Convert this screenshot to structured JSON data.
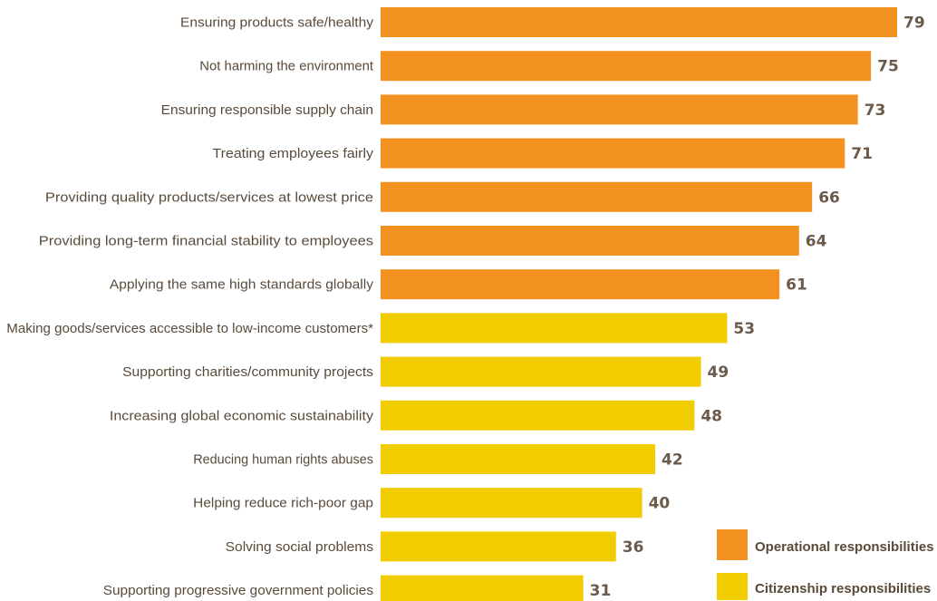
{
  "chart_data": {
    "type": "bar",
    "orientation": "horizontal",
    "categories": [
      "Ensuring products safe/healthy",
      "Not harming the environment",
      "Ensuring responsible supply chain",
      "Treating employees fairly",
      "Providing quality products/services at lowest price",
      "Providing long-term financial stability to employees",
      "Applying the same high standards globally",
      "Making goods/services accessible to low-income customers*",
      "Supporting charities/community projects",
      "Increasing global economic sustainability",
      "Reducing human rights abuses",
      "Helping reduce rich-poor gap",
      "Solving social problems",
      "Supporting progressive government policies"
    ],
    "values": [
      79,
      75,
      73,
      71,
      66,
      64,
      61,
      53,
      49,
      48,
      42,
      40,
      36,
      31
    ],
    "groups": [
      "Operational responsibilities",
      "Operational responsibilities",
      "Operational responsibilities",
      "Operational responsibilities",
      "Operational responsibilities",
      "Operational responsibilities",
      "Operational responsibilities",
      "Citizenship responsibilities",
      "Citizenship responsibilities",
      "Citizenship responsibilities",
      "Citizenship responsibilities",
      "Citizenship responsibilities",
      "Citizenship responsibilities",
      "Citizenship responsibilities"
    ],
    "legend": [
      {
        "name": "Operational responsibilities",
        "color": "#f39220"
      },
      {
        "name": "Citizenship responsibilities",
        "color": "#f0cc00"
      }
    ],
    "legend_position": "bottom-right",
    "xlim": [
      0,
      79
    ],
    "grid": false
  }
}
